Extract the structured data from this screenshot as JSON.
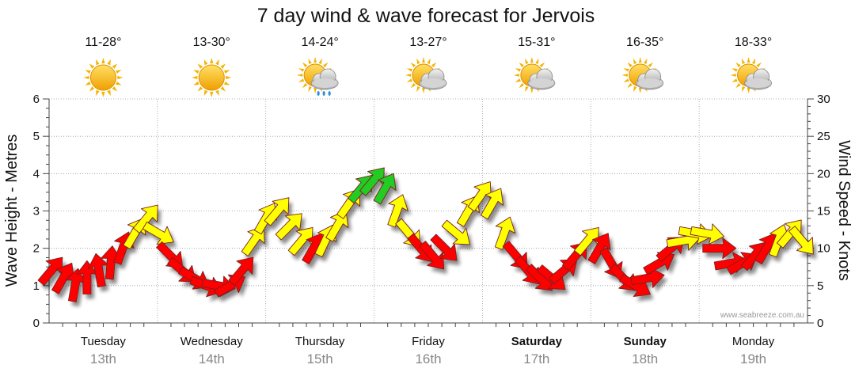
{
  "chart_data": {
    "type": "line",
    "title": "7 day wind & wave forecast for Jervois",
    "ylabel_left": "Wave Height - Metres",
    "ylabel_right": "Wind Speed - Knots",
    "ylim_left": [
      0,
      6
    ],
    "ylim_right": [
      0,
      30
    ],
    "yticks_left": [
      "0",
      "1",
      "2",
      "3",
      "4",
      "5",
      "6"
    ],
    "yticks_right": [
      "0",
      "5",
      "10",
      "15",
      "20",
      "25",
      "30"
    ],
    "days": [
      {
        "name": "Tuesday",
        "date": "13th",
        "bold": false,
        "temp": "11-28°",
        "weather": "sunny-icon"
      },
      {
        "name": "Wednesday",
        "date": "14th",
        "bold": false,
        "temp": "13-30°",
        "weather": "sunny-icon"
      },
      {
        "name": "Thursday",
        "date": "15th",
        "bold": false,
        "temp": "14-24°",
        "weather": "rain-shower-icon"
      },
      {
        "name": "Friday",
        "date": "16th",
        "bold": false,
        "temp": "13-27°",
        "weather": "partly-cloudy-icon"
      },
      {
        "name": "Saturday",
        "date": "17th",
        "bold": true,
        "temp": "15-31°",
        "weather": "partly-cloudy-icon"
      },
      {
        "name": "Sunday",
        "date": "18th",
        "bold": true,
        "temp": "16-35°",
        "weather": "partly-cloudy-icon"
      },
      {
        "name": "Monday",
        "date": "19th",
        "bold": false,
        "temp": "18-33°",
        "weather": "partly-cloudy-icon"
      }
    ],
    "series": [
      {
        "name": "Wind Speed (knots)",
        "t_days": [
          0.02,
          0.13,
          0.24,
          0.35,
          0.46,
          0.57,
          0.68,
          0.79,
          0.9,
          1.01,
          1.12,
          1.23,
          1.34,
          1.45,
          1.56,
          1.67,
          1.78,
          1.89,
          2.0,
          2.11,
          2.22,
          2.33,
          2.44,
          2.55,
          2.66,
          2.77,
          2.88,
          2.99,
          3.1,
          3.21,
          3.32,
          3.43,
          3.54,
          3.65,
          3.76,
          3.87,
          3.98,
          4.09,
          4.2,
          4.31,
          4.42,
          4.53,
          4.64,
          4.75,
          4.86,
          4.97,
          5.08,
          5.19,
          5.3,
          5.41,
          5.52,
          5.63,
          5.74,
          5.85,
          5.96,
          6.07,
          6.18,
          6.29,
          6.4,
          6.51,
          6.62,
          6.73,
          6.84,
          6.95
        ],
        "values": [
          7,
          6,
          5,
          6,
          7,
          8,
          10,
          12,
          14,
          12,
          9,
          7,
          6,
          5,
          5,
          5,
          7,
          11,
          14,
          15,
          13,
          11,
          10,
          11,
          13,
          16,
          18,
          19,
          18,
          15,
          12,
          10,
          9,
          10,
          12,
          15,
          17,
          16,
          12,
          9,
          7,
          6,
          6,
          7,
          9,
          11,
          10,
          8,
          6,
          5,
          6,
          8,
          10,
          11,
          12,
          12,
          10,
          8,
          8,
          9,
          10,
          11,
          12,
          11
        ],
        "direction_deg": [
          40,
          30,
          10,
          0,
          350,
          5,
          20,
          30,
          40,
          120,
          135,
          130,
          120,
          110,
          100,
          60,
          40,
          35,
          30,
          40,
          45,
          40,
          30,
          25,
          30,
          35,
          40,
          40,
          30,
          20,
          140,
          140,
          140,
          135,
          130,
          30,
          35,
          30,
          20,
          140,
          140,
          135,
          130,
          50,
          40,
          40,
          30,
          150,
          135,
          120,
          80,
          60,
          50,
          80,
          100,
          100,
          90,
          80,
          60,
          40,
          30,
          20,
          40,
          140
        ]
      },
      {
        "name": "Wave Height (m)",
        "values": [
          1.3,
          1.1,
          1.0,
          1.1,
          1.3,
          1.6,
          1.9,
          2.3,
          2.6,
          2.3,
          1.8,
          1.4,
          1.1,
          0.9,
          0.9,
          0.9,
          1.2,
          2.0,
          2.6,
          2.8,
          2.4,
          2.0,
          1.9,
          2.1,
          2.5,
          3.0,
          3.5,
          3.8,
          3.4,
          2.6,
          2.1,
          1.8,
          1.6,
          1.8,
          2.2,
          2.9,
          3.3,
          3.0,
          2.2,
          1.7,
          1.3,
          1.1,
          1.1,
          1.3,
          1.7,
          2.1,
          2.0,
          1.5,
          1.1,
          0.9,
          1.1,
          1.5,
          1.9,
          2.0,
          2.2,
          2.2,
          1.8,
          1.5,
          1.5,
          1.6,
          1.8,
          2.0,
          2.2,
          2.0
        ]
      }
    ],
    "color_scale": [
      {
        "max_knots": 10,
        "color": "#ff0000"
      },
      {
        "max_knots": 17,
        "color": "#ffff00"
      },
      {
        "max_knots": 30,
        "color": "#22cc22"
      }
    ],
    "grid": true
  },
  "credit": "www.seabreeze.com.au"
}
